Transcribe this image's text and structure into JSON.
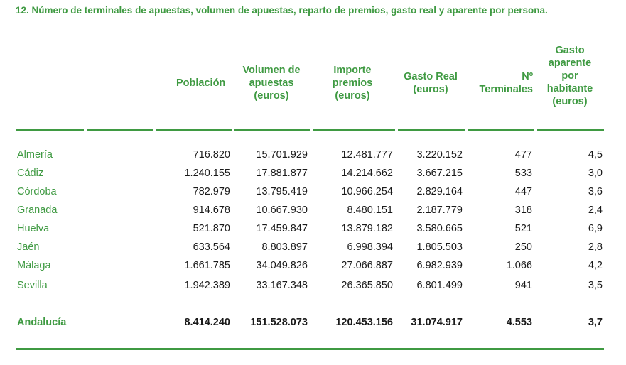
{
  "title": "12. Número de terminales de apuestas, volumen  de apuestas, reparto de premios, gasto real y aparente por persona.",
  "headers": {
    "poblacion": "Población",
    "volumen": "Volumen de\napuestas\n(euros)",
    "importe": "Importe\npremios\n(euros)",
    "gasto_real": "Gasto Real\n(euros)",
    "terminales": "Nº\nTerminales",
    "gasto_aparente": "Gasto\naparente\npor\nhabitante\n(euros)"
  },
  "rows": [
    {
      "name": "Almería",
      "poblacion": "716.820",
      "volumen": "15.701.929",
      "importe": "12.481.777",
      "gasto_real": "3.220.152",
      "terminales": "477",
      "gasto_aparente": "4,5"
    },
    {
      "name": "Cádiz",
      "poblacion": "1.240.155",
      "volumen": "17.881.877",
      "importe": "14.214.662",
      "gasto_real": "3.667.215",
      "terminales": "533",
      "gasto_aparente": "3,0"
    },
    {
      "name": "Córdoba",
      "poblacion": "782.979",
      "volumen": "13.795.419",
      "importe": "10.966.254",
      "gasto_real": "2.829.164",
      "terminales": "447",
      "gasto_aparente": "3,6"
    },
    {
      "name": "Granada",
      "poblacion": "914.678",
      "volumen": "10.667.930",
      "importe": "8.480.151",
      "gasto_real": "2.187.779",
      "terminales": "318",
      "gasto_aparente": "2,4"
    },
    {
      "name": "Huelva",
      "poblacion": "521.870",
      "volumen": "17.459.847",
      "importe": "13.879.182",
      "gasto_real": "3.580.665",
      "terminales": "521",
      "gasto_aparente": "6,9"
    },
    {
      "name": "Jaén",
      "poblacion": "633.564",
      "volumen": "8.803.897",
      "importe": "6.998.394",
      "gasto_real": "1.805.503",
      "terminales": "250",
      "gasto_aparente": "2,8"
    },
    {
      "name": "Málaga",
      "poblacion": "1.661.785",
      "volumen": "34.049.826",
      "importe": "27.066.887",
      "gasto_real": "6.982.939",
      "terminales": "1.066",
      "gasto_aparente": "4,2"
    },
    {
      "name": "Sevilla",
      "poblacion": "1.942.389",
      "volumen": "33.167.348",
      "importe": "26.365.850",
      "gasto_real": "6.801.499",
      "terminales": "941",
      "gasto_aparente": "3,5"
    }
  ],
  "total": {
    "name": "Andalucía",
    "poblacion": "8.414.240",
    "volumen": "151.528.073",
    "importe": "120.453.156",
    "gasto_real": "31.074.917",
    "terminales": "4.553",
    "gasto_aparente": "3,7"
  },
  "colors": {
    "accent": "#3f9a42",
    "text": "#1a1a1a"
  }
}
